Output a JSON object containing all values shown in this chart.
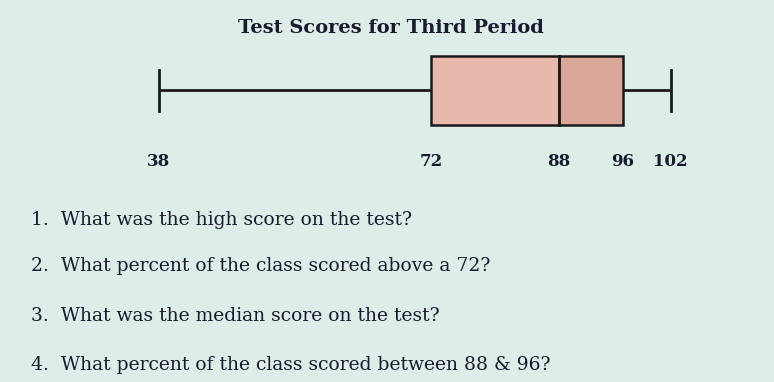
{
  "title": "Test Scores for Third Period",
  "whisker_min": 38,
  "q1": 72,
  "median": 88,
  "q3": 96,
  "whisker_max": 102,
  "box_facecolor_left": "#e8b8ac",
  "box_facecolor_right": "#d9a898",
  "box_edgecolor": "#1a1a1a",
  "line_color": "#1a1a1a",
  "background_color": "#ddeee8",
  "title_color": "#1a1a2e",
  "text_color": "#1a1a2e",
  "questions": [
    "1.  What was the high score on the test?",
    "2.  What percent of the class scored above a 72?",
    "3.  What was the median score on the test?",
    "4.  What percent of the class scored between 88 & 96?"
  ],
  "tick_labels": [
    "38",
    "72",
    "88",
    "96",
    "102"
  ],
  "tick_values": [
    38,
    72,
    88,
    96,
    102
  ],
  "plot_xlim": [
    22,
    112
  ],
  "title_fontsize": 14,
  "tick_fontsize": 12,
  "question_fontsize": 13.5
}
